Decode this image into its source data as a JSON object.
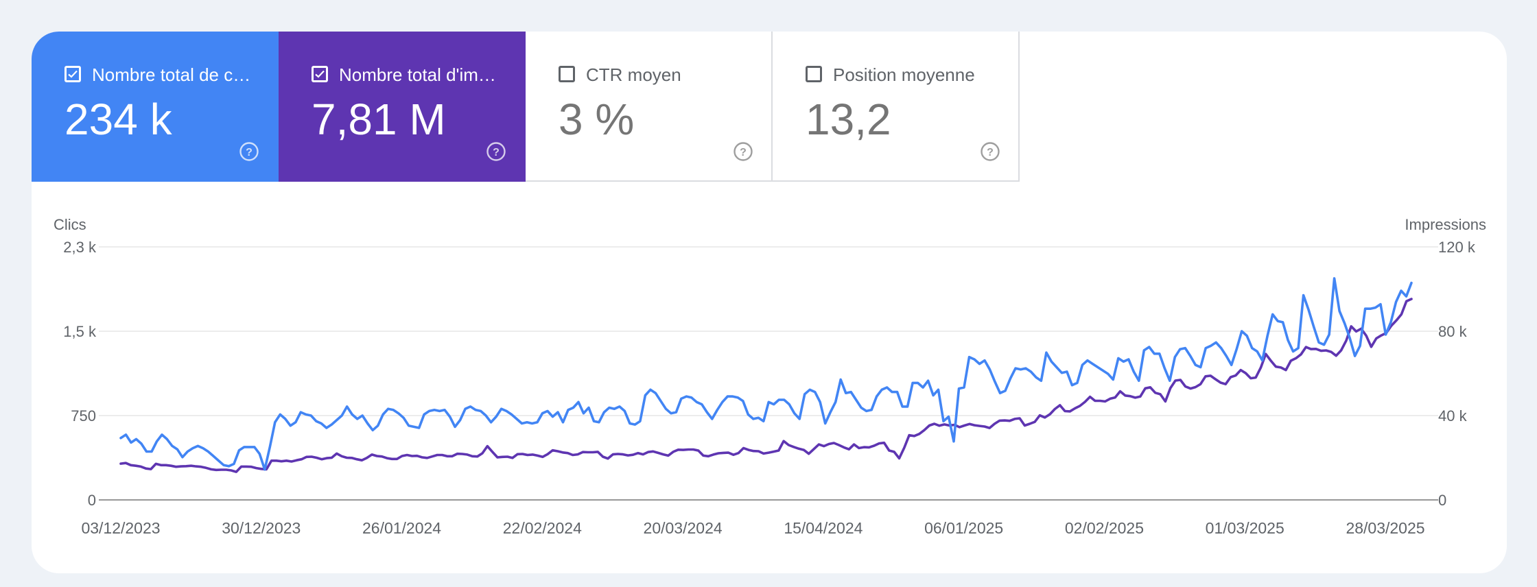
{
  "metrics": [
    {
      "label": "Nombre total de c…",
      "value": "234 k",
      "checked": true,
      "color": "#4285f4"
    },
    {
      "label": "Nombre total d'im…",
      "value": "7,81 M",
      "checked": true,
      "color": "#5e35b1"
    },
    {
      "label": "CTR moyen",
      "value": "3 %",
      "checked": false
    },
    {
      "label": "Position moyenne",
      "value": "13,2",
      "checked": false
    }
  ],
  "chart_data": {
    "type": "line",
    "left_axis": {
      "label": "Clics",
      "ticks": [
        "0",
        "750",
        "1,5 k",
        "2,3 k"
      ],
      "range": [
        0,
        2250
      ]
    },
    "right_axis": {
      "label": "Impressions",
      "ticks": [
        "0",
        "40 k",
        "80 k",
        "120 k"
      ],
      "range": [
        0,
        120000
      ]
    },
    "x_ticks": [
      "03/12/2023",
      "30/12/2023",
      "26/01/2024",
      "22/02/2024",
      "20/03/2024",
      "15/04/2024",
      "06/01/2025",
      "02/02/2025",
      "01/03/2025",
      "28/03/2025"
    ],
    "grid": true,
    "legend": "none",
    "colors": {
      "clicks": "#4285f4",
      "impressions": "#5e35b1"
    },
    "series": [
      {
        "axis": "left",
        "values": [
          550,
          580,
          510,
          540,
          500,
          430,
          430,
          520,
          580,
          540,
          480,
          450,
          380,
          430,
          460,
          480,
          460,
          430,
          390,
          350,
          310,
          300,
          320,
          440,
          470,
          470,
          470,
          410,
          270,
          470,
          690,
          760,
          720,
          660,
          690,
          780,
          760,
          750,
          700,
          680,
          640,
          670,
          710,
          750,
          830,
          760,
          720,
          750,
          680,
          620,
          660,
          760,
          810,
          800,
          770,
          730,
          660,
          650,
          640,
          760,
          790,
          800,
          790,
          800,
          740,
          650,
          710,
          810,
          830,
          800,
          790,
          750,
          690,
          740,
          810,
          790,
          760,
          720,
          680,
          690,
          680,
          690,
          770,
          790,
          740,
          780,
          690,
          800,
          820,
          870,
          770,
          820,
          700,
          690,
          780,
          820,
          810,
          830,
          790,
          680,
          670,
          700,
          930,
          980,
          950,
          880,
          810,
          770,
          780,
          900,
          920,
          910,
          870,
          850,
          780,
          720,
          800,
          870,
          920,
          920,
          910,
          880,
          760,
          720,
          730,
          700,
          870,
          850,
          890,
          890,
          850,
          770,
          720,
          940,
          980,
          960,
          870,
          680,
          780,
          870,
          1070,
          950,
          960,
          890,
          820,
          790,
          800,
          920,
          980,
          1000,
          960,
          960,
          830,
          830,
          1040,
          1040,
          1000,
          1060,
          930,
          980,
          700,
          740,
          520,
          990,
          1000,
          1270,
          1250,
          1210,
          1240,
          1160,
          1050,
          950,
          970,
          1080,
          1170,
          1160,
          1170,
          1140,
          1090,
          1060,
          1310,
          1230,
          1180,
          1130,
          1140,
          1020,
          1040,
          1200,
          1240,
          1210,
          1180,
          1150,
          1120,
          1070,
          1260,
          1230,
          1250,
          1140,
          1060,
          1330,
          1360,
          1300,
          1300,
          1170,
          1060,
          1270,
          1340,
          1350,
          1280,
          1200,
          1180,
          1350,
          1370,
          1400,
          1350,
          1280,
          1200,
          1340,
          1500,
          1460,
          1350,
          1320,
          1240,
          1460,
          1650,
          1590,
          1580,
          1420,
          1320,
          1350,
          1820,
          1690,
          1540,
          1400,
          1380,
          1470,
          1970,
          1680,
          1570,
          1440,
          1280,
          1370,
          1700,
          1700,
          1710,
          1740,
          1470,
          1580,
          1760,
          1860,
          1810,
          1930
        ]
      },
      {
        "axis": "right",
        "values": [
          17200,
          17500,
          16500,
          16200,
          15800,
          14900,
          14600,
          17100,
          16500,
          16500,
          16200,
          15700,
          15900,
          16000,
          16200,
          15900,
          15700,
          15200,
          14500,
          14200,
          14300,
          14300,
          14000,
          13300,
          15800,
          15800,
          15700,
          15100,
          14700,
          14500,
          18600,
          18600,
          18300,
          18600,
          18200,
          18800,
          19300,
          20400,
          20500,
          20000,
          19300,
          19800,
          20000,
          22000,
          20700,
          20000,
          19900,
          19300,
          18800,
          19900,
          21500,
          20800,
          20600,
          19800,
          19400,
          19400,
          20800,
          21300,
          20800,
          20900,
          20200,
          19900,
          20600,
          21300,
          21300,
          20700,
          20700,
          21900,
          21800,
          21500,
          20700,
          20600,
          22100,
          25500,
          22800,
          20200,
          20400,
          20500,
          19900,
          21700,
          21800,
          21300,
          21500,
          21000,
          20400,
          21700,
          23500,
          23100,
          22500,
          22200,
          21300,
          21600,
          22700,
          22600,
          22600,
          22800,
          20500,
          19600,
          21600,
          21800,
          21600,
          21100,
          21400,
          22200,
          21600,
          22700,
          23000,
          22300,
          21600,
          21000,
          22800,
          23800,
          23700,
          23900,
          23900,
          23400,
          21000,
          20700,
          21500,
          22100,
          22300,
          22400,
          21400,
          22200,
          24600,
          23700,
          23200,
          23100,
          22000,
          22400,
          22900,
          23400,
          27900,
          26000,
          25100,
          24300,
          23700,
          21900,
          24100,
          26300,
          25500,
          26500,
          27000,
          26000,
          24900,
          24000,
          26300,
          24600,
          25000,
          24900,
          25700,
          26800,
          27100,
          23400,
          22800,
          19700,
          24700,
          30700,
          30300,
          31300,
          33100,
          35300,
          36100,
          35200,
          35800,
          35300,
          35600,
          34500,
          35300,
          36000,
          35400,
          35100,
          34800,
          34100,
          36100,
          37600,
          37700,
          37500,
          38400,
          38700,
          35300,
          36100,
          37000,
          40100,
          39100,
          40600,
          43100,
          44900,
          42100,
          42000,
          43400,
          44600,
          46500,
          48900,
          47000,
          47000,
          46700,
          48000,
          48600,
          51500,
          49500,
          49200,
          48500,
          49000,
          52900,
          53400,
          50800,
          50100,
          46700,
          53000,
          56600,
          56900,
          53800,
          52800,
          53500,
          54900,
          58600,
          58900,
          57200,
          55600,
          54900,
          58200,
          59000,
          61600,
          60100,
          57700,
          58000,
          62700,
          69200,
          66000,
          63200,
          62800,
          61600,
          66000,
          67200,
          69000,
          72500,
          71500,
          71600,
          70700,
          70900,
          70200,
          68400,
          70900,
          75500,
          82300,
          79900,
          81200,
          77900,
          72600,
          76600,
          78000,
          79200,
          82600,
          85100,
          88000,
          94200,
          95300
        ]
      }
    ]
  }
}
